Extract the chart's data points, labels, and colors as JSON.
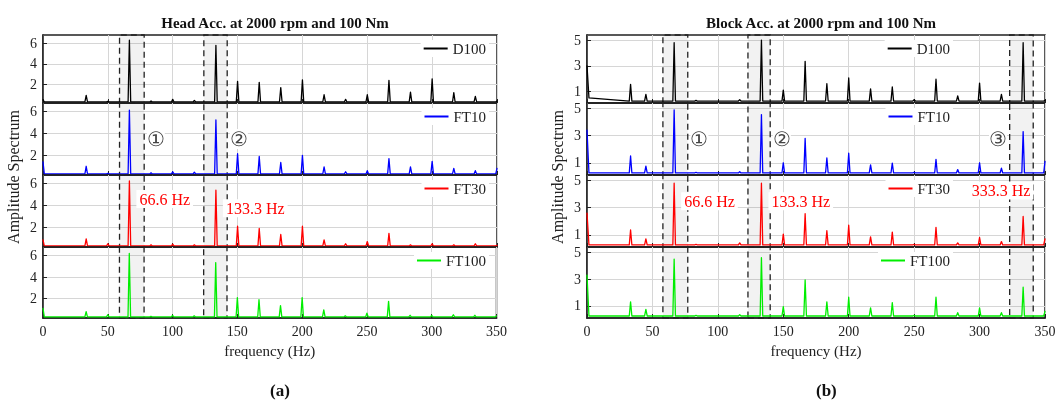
{
  "chart_data": [
    {
      "type": "line",
      "title": "Head Acc. at 2000 rpm and 100 Nm",
      "marker": "none",
      "grid": true,
      "legend": "top right",
      "tick_labels": "y",
      "xlim": [
        0,
        350
      ],
      "xticks": [
        0,
        50,
        100,
        150,
        200,
        250,
        300,
        350
      ],
      "ylim": [
        0.2,
        6.8
      ],
      "yticks": [
        2,
        4,
        6
      ],
      "x": [
        0,
        1,
        32.3,
        33.3,
        34.3,
        49,
        50,
        51,
        65.6,
        66.6,
        67.6,
        82.3,
        83.3,
        84.3,
        99,
        100,
        101,
        115.7,
        116.7,
        117.7,
        132.3,
        133.3,
        134.3,
        149,
        150,
        151,
        165.7,
        166.7,
        167.7,
        182.3,
        183.3,
        184.3,
        199,
        200,
        201,
        215.7,
        216.7,
        217.7,
        232.3,
        233.3,
        234.3,
        249,
        250,
        251,
        265.7,
        266.7,
        267.7,
        282.3,
        283.3,
        284.3,
        299,
        300,
        301,
        315.7,
        316.7,
        317.7,
        332.3,
        333.3,
        334.3,
        349,
        350
      ],
      "series": [
        {
          "name": "D100",
          "color": "#000000",
          "values": [
            0.5,
            0.3,
            0.3,
            0.94,
            0.3,
            0.3,
            0.35,
            0.3,
            0.3,
            6.3,
            0.3,
            0.3,
            0.4,
            0.3,
            0.3,
            0.55,
            0.3,
            0.3,
            0.45,
            0.3,
            0.3,
            5.8,
            0.3,
            0.3,
            2.3,
            0.3,
            0.3,
            2.2,
            0.3,
            0.3,
            1.7,
            0.3,
            0.3,
            2.45,
            0.3,
            0.3,
            1.0,
            0.3,
            0.3,
            0.55,
            0.3,
            0.3,
            1.0,
            0.3,
            0.3,
            2.4,
            0.3,
            0.3,
            1.25,
            0.3,
            0.3,
            2.55,
            0.3,
            0.3,
            1.2,
            0.3,
            0.3,
            0.85,
            0.3,
            0.3,
            0.4
          ]
        }
      ],
      "bands": [
        {
          "axis": "x",
          "from": 59,
          "to": 78
        },
        {
          "axis": "x",
          "from": 124,
          "to": 142
        }
      ]
    },
    {
      "type": "line",
      "ylabel": "Amplitude Spectrum",
      "marker": "none",
      "grid": true,
      "legend": "top right",
      "tick_labels": "y",
      "xlim": [
        0,
        350
      ],
      "xticks": [
        0,
        50,
        100,
        150,
        200,
        250,
        300,
        350
      ],
      "ylim": [
        0.2,
        6.8
      ],
      "yticks": [
        2,
        4,
        6
      ],
      "x": [
        0,
        1,
        32.3,
        33.3,
        34.3,
        49,
        50,
        51,
        65.6,
        66.6,
        67.6,
        82.3,
        83.3,
        84.3,
        99,
        100,
        101,
        115.7,
        116.7,
        117.7,
        132.3,
        133.3,
        134.3,
        149,
        150,
        151,
        165.7,
        166.7,
        167.7,
        182.3,
        183.3,
        184.3,
        199,
        200,
        201,
        215.7,
        216.7,
        217.7,
        232.3,
        233.3,
        234.3,
        249,
        250,
        251,
        265.7,
        266.7,
        267.7,
        282.3,
        283.3,
        284.3,
        299,
        300,
        301,
        315.7,
        316.7,
        317.7,
        332.3,
        333.3,
        334.3,
        349,
        350
      ],
      "series": [
        {
          "name": "FT10",
          "color": "#0000ff",
          "values": [
            1.4,
            0.3,
            0.3,
            1.0,
            0.3,
            0.3,
            0.35,
            0.3,
            0.3,
            6.15,
            0.3,
            0.3,
            0.4,
            0.3,
            0.3,
            0.5,
            0.3,
            0.3,
            0.45,
            0.3,
            0.3,
            5.25,
            0.3,
            0.3,
            2.15,
            0.3,
            0.3,
            1.9,
            0.3,
            0.3,
            1.35,
            0.3,
            0.3,
            2.0,
            0.3,
            0.3,
            0.95,
            0.3,
            0.3,
            0.5,
            0.3,
            0.3,
            0.6,
            0.3,
            0.3,
            1.7,
            0.3,
            0.3,
            0.95,
            0.3,
            0.3,
            1.45,
            0.3,
            0.3,
            0.8,
            0.3,
            0.3,
            0.6,
            0.3,
            0.3,
            0.8
          ]
        }
      ],
      "bands": [
        {
          "axis": "x",
          "from": 59,
          "to": 78,
          "label": "①"
        },
        {
          "axis": "x",
          "from": 124,
          "to": 142,
          "label": "②"
        }
      ]
    },
    {
      "type": "line",
      "marker": "none",
      "grid": true,
      "legend": "top right",
      "tick_labels": "y",
      "xlim": [
        0,
        350
      ],
      "xticks": [
        0,
        50,
        100,
        150,
        200,
        250,
        300,
        350
      ],
      "ylim": [
        0.2,
        6.8
      ],
      "yticks": [
        2,
        4,
        6
      ],
      "x": [
        0,
        1,
        32.3,
        33.3,
        34.3,
        49,
        50,
        51,
        65.6,
        66.6,
        67.6,
        82.3,
        83.3,
        84.3,
        99,
        100,
        101,
        115.7,
        116.7,
        117.7,
        132.3,
        133.3,
        134.3,
        149,
        150,
        151,
        165.7,
        166.7,
        167.7,
        182.3,
        183.3,
        184.3,
        199,
        200,
        201,
        215.7,
        216.7,
        217.7,
        232.3,
        233.3,
        234.3,
        249,
        250,
        251,
        265.7,
        266.7,
        267.7,
        282.3,
        283.3,
        284.3,
        299,
        300,
        301,
        315.7,
        316.7,
        317.7,
        332.3,
        333.3,
        334.3,
        349,
        350
      ],
      "series": [
        {
          "name": "FT30",
          "color": "#ff0000",
          "values": [
            0.85,
            0.3,
            0.3,
            0.95,
            0.3,
            0.3,
            0.5,
            0.3,
            0.3,
            6.25,
            0.3,
            0.3,
            0.4,
            0.3,
            0.3,
            0.45,
            0.3,
            0.3,
            0.4,
            0.3,
            0.3,
            5.4,
            0.3,
            0.3,
            2.1,
            0.3,
            0.3,
            1.9,
            0.3,
            0.3,
            1.35,
            0.3,
            0.3,
            2.1,
            0.3,
            0.3,
            0.85,
            0.3,
            0.3,
            0.5,
            0.3,
            0.3,
            0.7,
            0.3,
            0.3,
            1.45,
            0.3,
            0.3,
            0.4,
            0.3,
            0.3,
            0.5,
            0.3,
            0.3,
            0.4,
            0.3,
            0.3,
            0.5,
            0.3,
            0.3,
            0.35
          ]
        }
      ],
      "bands": [
        {
          "axis": "x",
          "from": 59,
          "to": 78
        },
        {
          "axis": "x",
          "from": 124,
          "to": 142
        }
      ],
      "annotations": [
        {
          "text": "66.6 Hz",
          "x": 66.6,
          "y": 6.25
        },
        {
          "text": "133.3 Hz",
          "x": 133.3,
          "y": 5.4
        }
      ]
    },
    {
      "type": "line",
      "xlabel": "frequency (Hz)",
      "marker": "none",
      "grid": true,
      "legend": "top right",
      "xlim": [
        0,
        350
      ],
      "xticks": [
        0,
        50,
        100,
        150,
        200,
        250,
        300,
        350
      ],
      "ylim": [
        0.2,
        6.8
      ],
      "yticks": [
        2,
        4,
        6
      ],
      "x": [
        0,
        1,
        32.3,
        33.3,
        34.3,
        49,
        50,
        51,
        65.6,
        66.6,
        67.6,
        82.3,
        83.3,
        84.3,
        99,
        100,
        101,
        115.7,
        116.7,
        117.7,
        132.3,
        133.3,
        134.3,
        149,
        150,
        151,
        165.7,
        166.7,
        167.7,
        182.3,
        183.3,
        184.3,
        199,
        200,
        201,
        215.7,
        216.7,
        217.7,
        232.3,
        233.3,
        234.3,
        249,
        250,
        251,
        265.7,
        266.7,
        267.7,
        282.3,
        283.3,
        284.3,
        299,
        300,
        301,
        315.7,
        316.7,
        317.7,
        332.3,
        333.3,
        334.3,
        349,
        350
      ],
      "series": [
        {
          "name": "FT100",
          "color": "#00ee00",
          "values": [
            1.1,
            0.3,
            0.3,
            0.8,
            0.3,
            0.3,
            0.5,
            0.3,
            0.3,
            6.2,
            0.3,
            0.3,
            0.35,
            0.3,
            0.3,
            0.45,
            0.3,
            0.3,
            0.4,
            0.3,
            0.3,
            5.35,
            0.3,
            0.3,
            2.1,
            0.3,
            0.3,
            1.9,
            0.3,
            0.3,
            1.35,
            0.3,
            0.3,
            2.1,
            0.3,
            0.3,
            0.95,
            0.3,
            0.3,
            0.4,
            0.3,
            0.3,
            0.65,
            0.3,
            0.3,
            1.75,
            0.3,
            0.3,
            0.45,
            0.3,
            0.3,
            0.45,
            0.3,
            0.3,
            0.5,
            0.3,
            0.3,
            0.45,
            0.3,
            0.3,
            0.4
          ]
        }
      ],
      "bands": [
        {
          "axis": "x",
          "from": 59,
          "to": 78
        },
        {
          "axis": "x",
          "from": 124,
          "to": 142
        }
      ],
      "annotations": [
        "(a)"
      ]
    },
    {
      "type": "line",
      "title": "Block Acc. at 2000 rpm and 100 Nm",
      "marker": "none",
      "grid": true,
      "legend": "top right",
      "tick_labels": "y",
      "xlim": [
        0,
        350
      ],
      "xticks": [
        0,
        50,
        100,
        150,
        200,
        250,
        300,
        350
      ],
      "ylim": [
        0.1,
        5.4
      ],
      "yticks": [
        1,
        3,
        5
      ],
      "x": [
        0,
        1.5,
        32.3,
        33.3,
        34.3,
        44,
        45,
        46,
        65.6,
        66.6,
        67.6,
        82.3,
        83.3,
        84.3,
        115.7,
        116.7,
        117.7,
        132.3,
        133.3,
        134.3,
        149,
        150,
        151,
        165.7,
        166.7,
        167.7,
        182.3,
        183.3,
        184.3,
        199,
        200,
        201,
        215.7,
        216.7,
        217.7,
        232.3,
        233.3,
        234.3,
        249,
        250,
        251,
        265.7,
        266.7,
        267.7,
        282.3,
        283.3,
        284.3,
        299,
        300,
        301,
        315.7,
        316.7,
        317.7,
        332.3,
        333.3,
        334.3,
        349,
        350
      ],
      "series": [
        {
          "name": "D100",
          "color": "#000000",
          "values": [
            3.0,
            0.5,
            0.25,
            1.55,
            0.25,
            0.25,
            0.77,
            0.25,
            0.25,
            4.8,
            0.25,
            0.25,
            0.3,
            0.25,
            0.25,
            0.35,
            0.25,
            0.25,
            5.0,
            0.25,
            0.25,
            1.1,
            0.25,
            0.25,
            3.35,
            0.25,
            0.25,
            1.6,
            0.25,
            0.25,
            2.05,
            0.25,
            0.25,
            1.2,
            0.25,
            0.25,
            1.35,
            0.25,
            0.25,
            0.35,
            0.25,
            0.25,
            1.95,
            0.25,
            0.25,
            0.65,
            0.25,
            0.25,
            1.65,
            0.25,
            0.25,
            0.77,
            0.25,
            0.25,
            4.8,
            0.25,
            0.25,
            0.3
          ]
        }
      ],
      "bands": [
        {
          "axis": "x",
          "from": 58,
          "to": 77
        },
        {
          "axis": "x",
          "from": 123,
          "to": 140
        },
        {
          "axis": "x",
          "from": 323,
          "to": 341
        }
      ]
    },
    {
      "type": "line",
      "ylabel": "Amplitude Spectrum",
      "marker": "none",
      "grid": true,
      "legend": "top right",
      "tick_labels": "y",
      "xlim": [
        0,
        350
      ],
      "xticks": [
        0,
        50,
        100,
        150,
        200,
        250,
        300,
        350
      ],
      "ylim": [
        0.1,
        5.4
      ],
      "yticks": [
        1,
        3,
        5
      ],
      "x": [
        0,
        1.5,
        32.3,
        33.3,
        34.3,
        44,
        45,
        46,
        65.6,
        66.6,
        67.6,
        82.3,
        83.3,
        84.3,
        115.7,
        116.7,
        117.7,
        132.3,
        133.3,
        134.3,
        149,
        150,
        151,
        165.7,
        166.7,
        167.7,
        182.3,
        183.3,
        184.3,
        199,
        200,
        201,
        215.7,
        216.7,
        217.7,
        232.3,
        233.3,
        234.3,
        249,
        250,
        251,
        265.7,
        266.7,
        267.7,
        282.3,
        283.3,
        284.3,
        299,
        300,
        301,
        315.7,
        316.7,
        317.7,
        332.3,
        333.3,
        334.3,
        349,
        350
      ],
      "series": [
        {
          "name": "FT10",
          "color": "#0000ff",
          "values": [
            3.4,
            0.25,
            0.25,
            1.5,
            0.25,
            0.25,
            0.75,
            0.25,
            0.25,
            4.9,
            0.25,
            0.25,
            0.3,
            0.25,
            0.25,
            0.35,
            0.25,
            0.25,
            4.55,
            0.25,
            0.25,
            1.0,
            0.25,
            0.25,
            2.8,
            0.25,
            0.25,
            1.35,
            0.25,
            0.25,
            1.7,
            0.25,
            0.25,
            0.85,
            0.25,
            0.25,
            0.97,
            0.25,
            0.25,
            0.3,
            0.25,
            0.25,
            1.25,
            0.25,
            0.25,
            0.5,
            0.25,
            0.25,
            1.0,
            0.25,
            0.25,
            0.6,
            0.25,
            0.25,
            3.3,
            0.25,
            0.25,
            1.1
          ]
        }
      ],
      "bands": [
        {
          "axis": "x",
          "from": 58,
          "to": 77,
          "label": "①"
        },
        {
          "axis": "x",
          "from": 123,
          "to": 140,
          "label": "②"
        },
        {
          "axis": "x",
          "from": 323,
          "to": 341,
          "label": "③"
        }
      ]
    },
    {
      "type": "line",
      "marker": "none",
      "grid": true,
      "legend": "top right",
      "tick_labels": "y",
      "xlim": [
        0,
        350
      ],
      "xticks": [
        0,
        50,
        100,
        150,
        200,
        250,
        300,
        350
      ],
      "ylim": [
        0.1,
        5.4
      ],
      "yticks": [
        1,
        3,
        5
      ],
      "x": [
        0,
        1.5,
        32.3,
        33.3,
        34.3,
        44,
        45,
        46,
        65.6,
        66.6,
        67.6,
        82.3,
        83.3,
        84.3,
        115.7,
        116.7,
        117.7,
        132.3,
        133.3,
        134.3,
        149,
        150,
        151,
        165.7,
        166.7,
        167.7,
        182.3,
        183.3,
        184.3,
        199,
        200,
        201,
        215.7,
        216.7,
        217.7,
        232.3,
        233.3,
        234.3,
        249,
        250,
        251,
        265.7,
        266.7,
        267.7,
        282.3,
        283.3,
        284.3,
        299,
        300,
        301,
        315.7,
        316.7,
        317.7,
        332.3,
        333.3,
        334.3,
        349,
        350
      ],
      "series": [
        {
          "name": "FT30",
          "color": "#ff0000",
          "values": [
            2.6,
            0.25,
            0.25,
            1.35,
            0.25,
            0.25,
            0.7,
            0.25,
            0.25,
            4.8,
            0.25,
            0.25,
            0.3,
            0.25,
            0.25,
            0.4,
            0.25,
            0.25,
            4.8,
            0.25,
            0.25,
            1.05,
            0.25,
            0.25,
            2.55,
            0.25,
            0.25,
            1.3,
            0.25,
            0.25,
            1.7,
            0.25,
            0.25,
            0.85,
            0.25,
            0.25,
            1.2,
            0.25,
            0.25,
            0.3,
            0.25,
            0.25,
            1.55,
            0.25,
            0.25,
            0.4,
            0.25,
            0.25,
            0.8,
            0.25,
            0.25,
            0.5,
            0.25,
            0.25,
            2.35,
            0.25,
            0.25,
            0.7
          ]
        }
      ],
      "bands": [
        {
          "axis": "x",
          "from": 58,
          "to": 77
        },
        {
          "axis": "x",
          "from": 123,
          "to": 140
        },
        {
          "axis": "x",
          "from": 323,
          "to": 341
        }
      ],
      "annotations": [
        {
          "text": "66.6 Hz",
          "x": 66.6,
          "y": 4.8
        },
        {
          "text": "133.3 Hz",
          "x": 133.3,
          "y": 4.8
        },
        {
          "text": "333.3 Hz",
          "x": 333.3,
          "y": 2.35
        }
      ]
    },
    {
      "type": "line",
      "xlabel": "frequency (Hz)",
      "marker": "none",
      "grid": true,
      "legend": "top right",
      "xlim": [
        0,
        350
      ],
      "xticks": [
        0,
        50,
        100,
        150,
        200,
        250,
        300,
        350
      ],
      "ylim": [
        0.1,
        5.4
      ],
      "yticks": [
        1,
        3,
        5
      ],
      "x": [
        0,
        1.5,
        32.3,
        33.3,
        34.3,
        44,
        45,
        46,
        65.6,
        66.6,
        67.6,
        82.3,
        83.3,
        84.3,
        115.7,
        116.7,
        117.7,
        132.3,
        133.3,
        134.3,
        149,
        150,
        151,
        165.7,
        166.7,
        167.7,
        182.3,
        183.3,
        184.3,
        199,
        200,
        201,
        215.7,
        216.7,
        217.7,
        232.3,
        233.3,
        234.3,
        249,
        250,
        251,
        265.7,
        266.7,
        267.7,
        282.3,
        283.3,
        284.3,
        299,
        300,
        301,
        315.7,
        316.7,
        317.7,
        332.3,
        333.3,
        334.3,
        349,
        350
      ],
      "series": [
        {
          "name": "FT100",
          "color": "#00ee00",
          "values": [
            3.3,
            0.25,
            0.25,
            1.3,
            0.25,
            0.25,
            0.75,
            0.25,
            0.25,
            4.5,
            0.25,
            0.25,
            0.3,
            0.25,
            0.25,
            0.35,
            0.25,
            0.25,
            4.6,
            0.25,
            0.25,
            0.95,
            0.25,
            0.25,
            2.95,
            0.25,
            0.25,
            1.3,
            0.25,
            0.25,
            1.65,
            0.25,
            0.25,
            0.85,
            0.25,
            0.25,
            1.25,
            0.25,
            0.25,
            0.3,
            0.25,
            0.25,
            1.65,
            0.25,
            0.25,
            0.5,
            0.25,
            0.25,
            0.85,
            0.25,
            0.25,
            0.5,
            0.25,
            0.25,
            2.4,
            0.25,
            0.25,
            0.6
          ]
        }
      ],
      "bands": [
        {
          "axis": "x",
          "from": 58,
          "to": 77
        },
        {
          "axis": "x",
          "from": 123,
          "to": 140
        },
        {
          "axis": "x",
          "from": 323,
          "to": 341
        }
      ],
      "annotations": [
        "(b)"
      ]
    }
  ]
}
